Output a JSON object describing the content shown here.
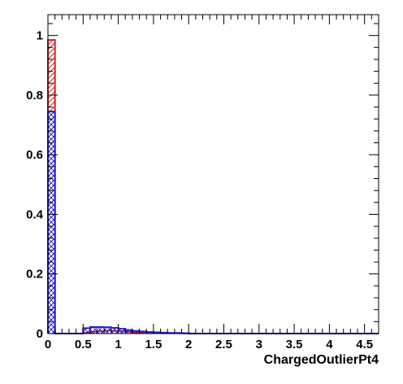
{
  "chart_data": {
    "type": "bar",
    "title": "",
    "xlabel": "ChargedOutlierPt4",
    "ylabel": "",
    "xlim": [
      0,
      4.7
    ],
    "ylim": [
      0,
      1.07
    ],
    "grid": false,
    "legend": "none",
    "x_ticks": [
      "0",
      "0.5",
      "1",
      "1.5",
      "2",
      "2.5",
      "3",
      "3.5",
      "4",
      "4.5"
    ],
    "y_ticks": [
      "0",
      "0.2",
      "0.4",
      "0.6",
      "0.8",
      "1"
    ],
    "bin_width": 0.1,
    "bin_edges": [
      0,
      0.1,
      0.2,
      0.3,
      0.4,
      0.5,
      0.6,
      0.7,
      0.8,
      0.9,
      1.0,
      1.1,
      1.2,
      1.3,
      1.4,
      1.5,
      1.6,
      1.7,
      1.8,
      1.9,
      2.0
    ],
    "series": [
      {
        "color": "#d42020",
        "fill": "diagonal-hatch",
        "values": [
          0.985,
          0,
          0,
          0,
          0,
          0.003,
          0.006,
          0.008,
          0.01,
          0.009,
          0.008,
          0.006,
          0.004,
          0.003,
          0.002,
          0.002,
          0.001,
          0.001,
          0.001,
          0.001
        ]
      },
      {
        "color": "#1f1fd6",
        "fill": "cross-hatch",
        "values": [
          0.745,
          0,
          0,
          0,
          0,
          0.018,
          0.022,
          0.022,
          0.021,
          0.019,
          0.016,
          0.012,
          0.009,
          0.007,
          0.005,
          0.004,
          0.003,
          0.002,
          0.002,
          0.001
        ]
      }
    ]
  }
}
